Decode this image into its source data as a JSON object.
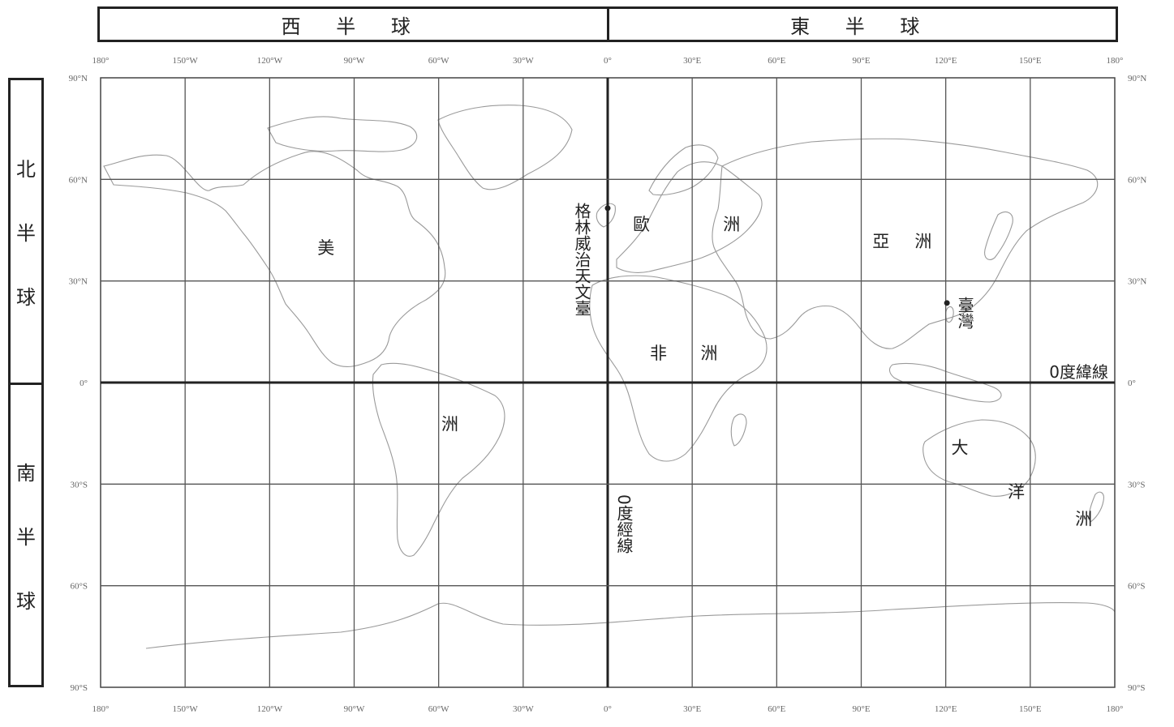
{
  "hemispheres": {
    "west": "西 半 球",
    "east": "東 半 球",
    "north_chars": [
      "北",
      "半",
      "球"
    ],
    "south_chars": [
      "南",
      "半",
      "球"
    ]
  },
  "longitude_ticks": [
    "180°",
    "150°W",
    "120°W",
    "90°W",
    "60°W",
    "30°W",
    "0°",
    "30°E",
    "60°E",
    "90°E",
    "120°E",
    "150°E",
    "180°"
  ],
  "latitude_ticks": [
    "90°N",
    "60°N",
    "30°N",
    "0°",
    "30°S",
    "60°S",
    "90°S"
  ],
  "continents": [
    {
      "chars": [
        "美",
        "洲"
      ],
      "lon_lat": [
        [
          -100,
          38
        ],
        [
          -56,
          -14
        ]
      ]
    },
    {
      "chars": [
        "歐",
        "洲"
      ],
      "lon_lat": [
        [
          12,
          45
        ],
        [
          44,
          45
        ]
      ]
    },
    {
      "chars": [
        "亞",
        "洲"
      ],
      "lon_lat": [
        [
          97,
          40
        ],
        [
          112,
          40
        ]
      ]
    },
    {
      "chars": [
        "非",
        "洲"
      ],
      "lon_lat": [
        [
          18,
          7
        ],
        [
          36,
          7
        ]
      ]
    },
    {
      "chars": [
        "大",
        "洋",
        "洲"
      ],
      "lon_lat": [
        [
          125,
          -21
        ],
        [
          145,
          -34
        ],
        [
          169,
          -42
        ]
      ]
    }
  ],
  "annotations": {
    "greenwich": "格林威治天文臺",
    "greenwich_lon_lat": [
      0,
      51.5
    ],
    "taiwan": "臺灣",
    "taiwan_lon_lat": [
      121,
      23.5
    ],
    "equator": "0度緯線",
    "prime_meridian": "0度經線"
  },
  "colors": {
    "frame": "#222222",
    "grid": "#555555",
    "coastline": "#9a9a9a"
  }
}
